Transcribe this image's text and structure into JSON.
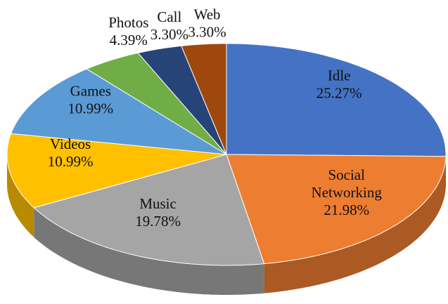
{
  "chart_data": {
    "type": "pie",
    "categories": [
      "Idle",
      "Social Networking",
      "Music",
      "Videos",
      "Games",
      "Photos",
      "Call",
      "Web"
    ],
    "values": [
      25.27,
      21.98,
      19.78,
      10.99,
      10.99,
      4.39,
      3.3,
      3.3
    ],
    "value_labels": [
      "25.27%",
      "21.98%",
      "19.78%",
      "10.99%",
      "10.99%",
      "4.39%",
      "3.30%",
      "3.30%"
    ],
    "colors": [
      "#4472c4",
      "#ed7d31",
      "#a5a5a5",
      "#ffc000",
      "#5b9bd5",
      "#70ad47",
      "#264478",
      "#9e480e"
    ]
  }
}
